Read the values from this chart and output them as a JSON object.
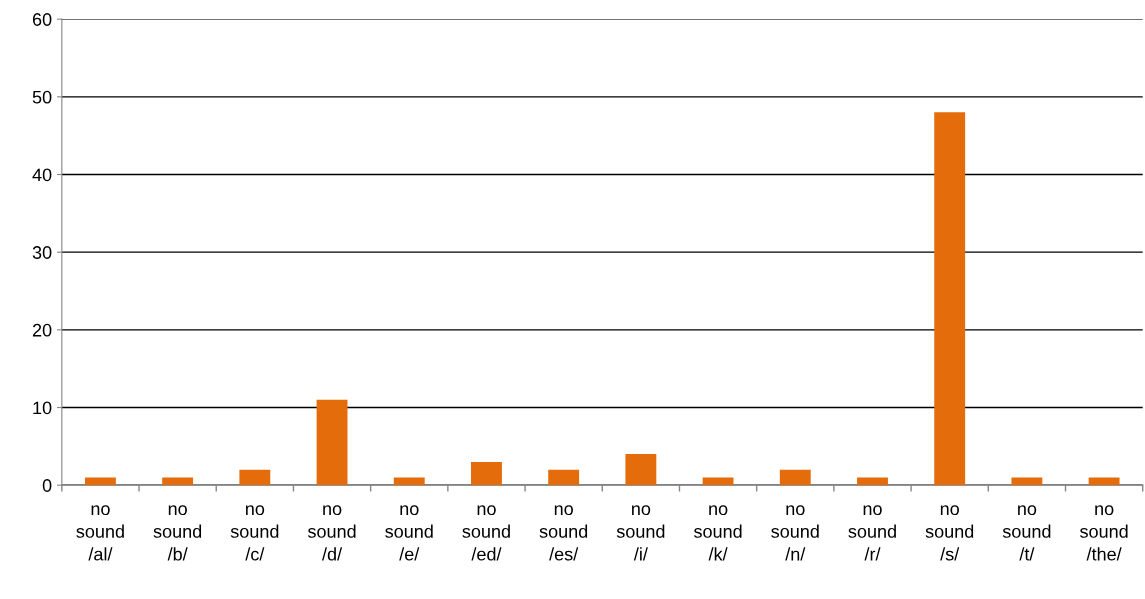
{
  "chart_data": {
    "type": "bar",
    "categories": [
      "no sound /al/",
      "no sound /b/",
      "no sound /c/",
      "no sound /d/",
      "no sound /e/",
      "no sound /ed/",
      "no sound /es/",
      "no sound /i/",
      "no sound /k/",
      "no sound /n/",
      "no sound /r/",
      "no sound /s/",
      "no sound /t/",
      "no sound /the/"
    ],
    "values": [
      1,
      1,
      2,
      11,
      1,
      3,
      2,
      4,
      1,
      2,
      1,
      48,
      1,
      1
    ],
    "color": "#e46c0a",
    "ylim": [
      0,
      60
    ],
    "yticks": [
      0,
      10,
      20,
      30,
      40,
      50,
      60
    ],
    "grid": "y"
  }
}
